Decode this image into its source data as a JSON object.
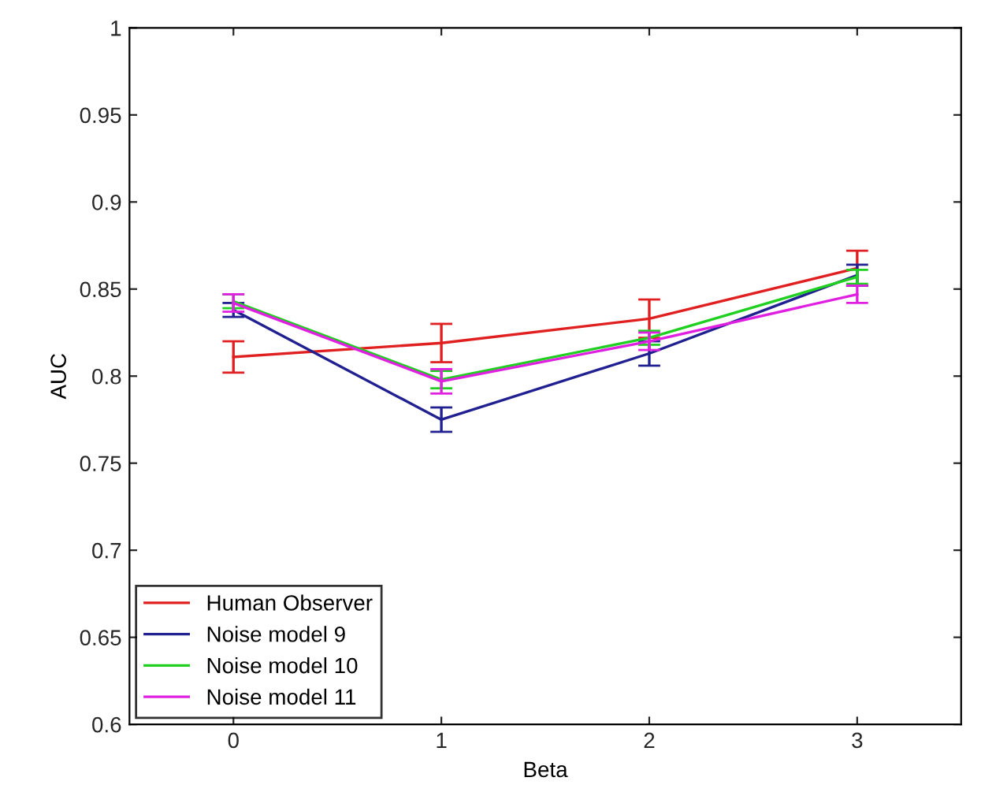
{
  "chart_data": {
    "type": "line",
    "xlabel": "Beta",
    "ylabel": "AUC",
    "x": [
      0,
      1,
      2,
      3
    ],
    "xlim": [
      -0.5,
      3.5
    ],
    "xticks": [
      0,
      1,
      2,
      3
    ],
    "ylim": [
      0.6,
      1
    ],
    "yticks": [
      0.6,
      0.65,
      0.7,
      0.75,
      0.8,
      0.85,
      0.9,
      0.95,
      1
    ],
    "grid": false,
    "legend": "bottom left",
    "marker": "none",
    "line_style": "solid",
    "series": [
      {
        "name": "Human Observer",
        "color": "#e02020",
        "values": [
          0.811,
          0.819,
          0.833,
          0.862
        ],
        "errors": [
          0.009,
          0.011,
          0.011,
          0.01
        ]
      },
      {
        "name": "Noise model 9",
        "color": "#202090",
        "values": [
          0.838,
          0.775,
          0.813,
          0.858
        ],
        "errors": [
          0.004,
          0.007,
          0.007,
          0.006
        ]
      },
      {
        "name": "Noise model 10",
        "color": "#20d020",
        "values": [
          0.843,
          0.798,
          0.822,
          0.857
        ],
        "errors": [
          0.004,
          0.005,
          0.004,
          0.004
        ]
      },
      {
        "name": "Noise model 11",
        "color": "#e020e0",
        "values": [
          0.842,
          0.797,
          0.82,
          0.847
        ],
        "errors": [
          0.005,
          0.007,
          0.005,
          0.005
        ]
      }
    ]
  }
}
